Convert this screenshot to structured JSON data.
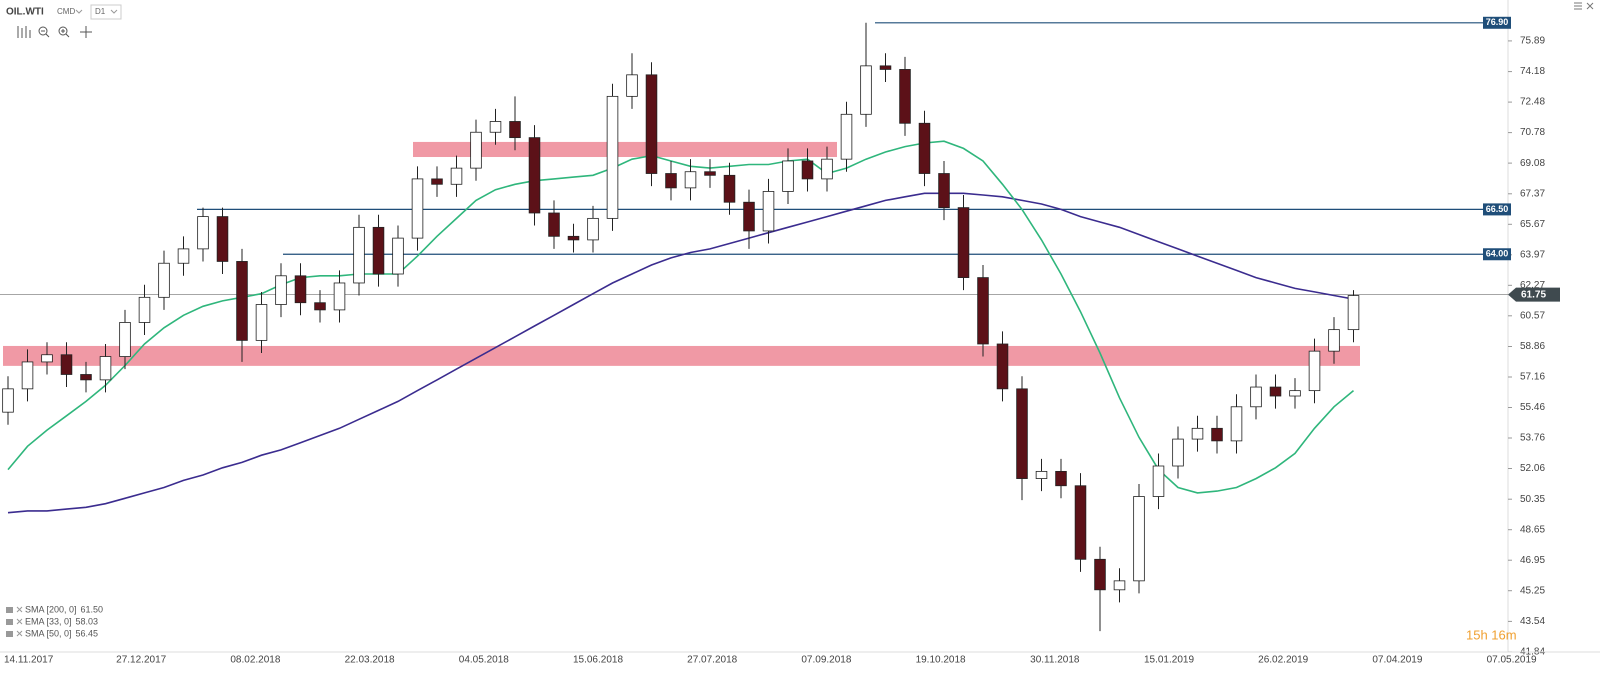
{
  "toolbar": {
    "symbol": "OIL.WTI",
    "market": "CMD",
    "interval": "D1"
  },
  "countdown": "15h 16m",
  "chart_data": {
    "type": "candlestick",
    "ylim": [
      41.84,
      78.17
    ],
    "yticks": [
      75.89,
      74.18,
      72.48,
      70.78,
      69.08,
      67.37,
      65.67,
      63.97,
      62.27,
      60.57,
      58.86,
      57.16,
      55.46,
      53.76,
      52.06,
      50.35,
      48.65,
      46.95,
      45.25,
      43.54,
      41.84
    ],
    "xticks": [
      "14.11.2017",
      "27.12.2017",
      "08.02.2018",
      "22.03.2018",
      "04.05.2018",
      "15.06.2018",
      "27.07.2018",
      "07.09.2018",
      "19.10.2018",
      "30.11.2018",
      "15.01.2019",
      "26.02.2019",
      "07.04.2019",
      "07.05.2019"
    ],
    "up_color": "#ffffff",
    "down_color": "#5c1118",
    "open": [
      55.2,
      56.5,
      58.0,
      58.4,
      57.3,
      57.0,
      58.3,
      60.2,
      61.6,
      63.5,
      64.3,
      66.1,
      63.6,
      59.2,
      61.2,
      62.8,
      61.3,
      60.9,
      62.4,
      65.5,
      62.9,
      64.9,
      68.2,
      67.9,
      68.8,
      70.8,
      71.4,
      70.5,
      66.3,
      65.0,
      64.8,
      66.0,
      72.8,
      74.0,
      68.5,
      67.7,
      68.6,
      68.4,
      66.9,
      65.3,
      67.5,
      69.2,
      68.2,
      69.3,
      71.8,
      74.5,
      74.3,
      71.3,
      68.5,
      66.6,
      62.7,
      59.0,
      56.5,
      51.5,
      51.9,
      51.1,
      47.0,
      45.3,
      45.8,
      50.5,
      52.2,
      53.7,
      54.3,
      53.6,
      55.5,
      56.6,
      56.1,
      56.4,
      58.6,
      59.8
    ],
    "high": [
      57.2,
      58.7,
      59.1,
      59.1,
      58.0,
      59.0,
      60.9,
      62.3,
      64.2,
      65.0,
      66.6,
      66.6,
      64.3,
      61.9,
      63.5,
      63.5,
      62.0,
      63.1,
      66.2,
      66.2,
      65.6,
      68.9,
      68.9,
      69.5,
      71.5,
      72.1,
      72.8,
      71.2,
      67.0,
      65.7,
      66.7,
      73.5,
      75.2,
      74.7,
      69.2,
      69.3,
      69.3,
      69.1,
      67.6,
      68.2,
      69.9,
      69.9,
      70.0,
      72.5,
      76.9,
      75.2,
      75.0,
      72.0,
      69.2,
      67.3,
      63.4,
      59.7,
      57.2,
      52.6,
      52.6,
      51.8,
      47.7,
      46.5,
      51.2,
      52.9,
      54.4,
      55.0,
      55.0,
      56.2,
      57.3,
      57.3,
      57.1,
      59.3,
      60.5,
      62.0
    ],
    "low": [
      54.5,
      55.8,
      57.3,
      56.6,
      56.3,
      56.3,
      57.6,
      59.5,
      60.9,
      62.8,
      63.6,
      62.9,
      58.0,
      58.5,
      60.5,
      60.6,
      60.2,
      60.2,
      61.7,
      62.2,
      62.2,
      64.2,
      67.2,
      67.2,
      68.1,
      70.1,
      69.8,
      65.6,
      64.3,
      64.1,
      64.1,
      65.3,
      72.1,
      67.8,
      67.0,
      67.0,
      67.7,
      66.2,
      64.3,
      64.6,
      66.8,
      67.5,
      67.5,
      68.6,
      71.1,
      73.6,
      70.6,
      67.8,
      65.9,
      62.0,
      58.3,
      55.8,
      50.3,
      50.8,
      50.4,
      46.3,
      43.0,
      44.6,
      45.1,
      49.8,
      51.5,
      53.0,
      52.9,
      52.9,
      54.8,
      55.4,
      55.4,
      55.7,
      57.9,
      59.1
    ],
    "close": [
      56.5,
      58.0,
      58.4,
      57.3,
      57.0,
      58.3,
      60.2,
      61.6,
      63.5,
      64.3,
      66.1,
      63.6,
      59.2,
      61.2,
      62.8,
      61.3,
      60.9,
      62.4,
      65.5,
      62.9,
      64.9,
      68.2,
      67.9,
      68.8,
      70.8,
      71.4,
      70.5,
      66.3,
      65.0,
      64.8,
      66.0,
      72.8,
      74.0,
      68.5,
      67.7,
      68.6,
      68.4,
      66.9,
      65.3,
      67.5,
      69.2,
      68.2,
      69.3,
      71.8,
      74.5,
      74.3,
      71.3,
      68.5,
      66.6,
      62.7,
      59.0,
      56.5,
      51.5,
      51.9,
      51.1,
      47.0,
      45.3,
      45.8,
      50.5,
      52.2,
      53.7,
      54.3,
      53.6,
      55.5,
      56.6,
      56.1,
      56.4,
      58.6,
      59.8,
      61.7
    ],
    "indicators": [
      {
        "name": "SMA [200, 0]",
        "value": {
          "value": 61.5,
          "label": "61.50"
        },
        "color": "#3b2c8f",
        "values": [
          49.6,
          49.7,
          49.7,
          49.8,
          49.9,
          50.1,
          50.4,
          50.7,
          51.0,
          51.4,
          51.7,
          52.1,
          52.4,
          52.8,
          53.1,
          53.5,
          53.9,
          54.3,
          54.8,
          55.3,
          55.8,
          56.4,
          57.0,
          57.6,
          58.2,
          58.8,
          59.4,
          60.0,
          60.6,
          61.2,
          61.8,
          62.4,
          62.9,
          63.4,
          63.8,
          64.1,
          64.3,
          64.6,
          64.9,
          65.2,
          65.5,
          65.8,
          66.1,
          66.4,
          66.7,
          67.0,
          67.2,
          67.4,
          67.4,
          67.4,
          67.3,
          67.2,
          67.0,
          66.8,
          66.5,
          66.1,
          65.8,
          65.5,
          65.1,
          64.7,
          64.3,
          63.9,
          63.5,
          63.1,
          62.7,
          62.4,
          62.1,
          61.9,
          61.7,
          61.5
        ]
      },
      {
        "name": "EMA [33, 0]",
        "value": {
          "value": 58.03,
          "label": "58.03"
        }
      },
      {
        "name": "SMA [50, 0]",
        "value": {
          "value": 56.45,
          "label": "56.45"
        },
        "color": "#2fb67c",
        "values": [
          52.0,
          53.3,
          54.2,
          55.0,
          55.8,
          56.7,
          57.8,
          59.0,
          59.9,
          60.6,
          61.1,
          61.4,
          61.6,
          61.8,
          62.3,
          62.7,
          62.8,
          62.8,
          62.9,
          62.9,
          62.9,
          63.9,
          65.0,
          66.0,
          67.0,
          67.6,
          67.9,
          68.1,
          68.2,
          68.3,
          68.4,
          68.8,
          69.3,
          69.5,
          69.2,
          68.9,
          68.8,
          68.9,
          69.0,
          69.0,
          69.2,
          69.3,
          68.5,
          68.8,
          69.3,
          69.7,
          70.0,
          70.2,
          70.3,
          69.9,
          69.2,
          67.9,
          66.5,
          64.8,
          62.9,
          60.8,
          58.5,
          56.0,
          53.8,
          52.0,
          51.0,
          50.7,
          50.8,
          51.0,
          51.5,
          52.1,
          52.9,
          54.3,
          55.5,
          56.4
        ]
      }
    ],
    "levels": [
      {
        "value": 76.9,
        "label": "76.90"
      },
      {
        "value": 66.5,
        "label": "66.50"
      },
      {
        "value": 64.0,
        "label": "64.00"
      }
    ],
    "level_color": "#1f4e79",
    "current_price": {
      "value": 61.75,
      "label": "61.75"
    },
    "zones": [
      {
        "low": 69.42,
        "high": 70.26
      },
      {
        "low": 57.78,
        "high": 58.89
      }
    ],
    "zone_color": "#ee8e9b"
  }
}
